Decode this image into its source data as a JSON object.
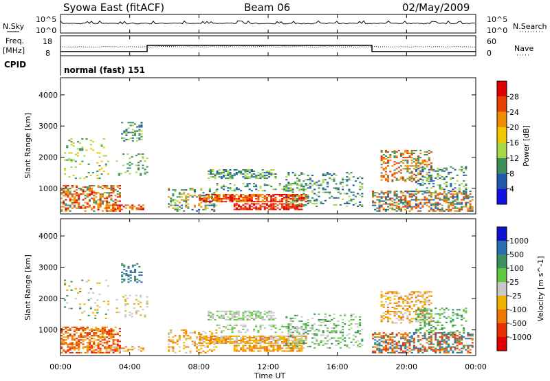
{
  "header": {
    "station": "Syowa East (fitACF)",
    "beam": "Beam 06",
    "date": "02/May/2009"
  },
  "noise_panel": {
    "left_label": "N.Sky",
    "right_label": "N.Search",
    "ticks_left": [
      "10^5",
      "10^0"
    ],
    "ticks_right": [
      "10^5",
      "10^0"
    ]
  },
  "freq_panel": {
    "left_label_top": "Freq.",
    "left_label_bottom": "[MHz]",
    "right_label": "Nave",
    "ticks_left": [
      "18",
      "8"
    ],
    "ticks_right": [
      "60",
      "0"
    ]
  },
  "cpid": {
    "label": "CPID",
    "value": "normal (fast) 151"
  },
  "x_axis": {
    "label": "Time UT",
    "ticks": [
      "00:00",
      "04:00",
      "08:00",
      "12:00",
      "16:00",
      "20:00",
      "00:00"
    ]
  },
  "chart_data": [
    {
      "type": "heatmap",
      "name": "power",
      "ylabel": "Slant Range [km]",
      "ylim": [
        180,
        4550
      ],
      "yticks": [
        "1000",
        "2000",
        "3000",
        "4000"
      ],
      "colorbar_label": "Power [dB]",
      "colorbar_ticks": [
        "4",
        "8",
        "12",
        "16",
        "20",
        "24",
        "28"
      ],
      "colors": [
        "#1010e0",
        "#1f5aaa",
        "#3d8f5a",
        "#a8d84a",
        "#f0c800",
        "#f08c00",
        "#e84000",
        "#e00000"
      ]
    },
    {
      "type": "heatmap",
      "name": "velocity",
      "ylabel": "Slant Range [km]",
      "ylim": [
        180,
        4550
      ],
      "yticks": [
        "1000",
        "2000",
        "3000",
        "4000"
      ],
      "colorbar_label": "Velocity [m s^-1]",
      "colorbar_ticks": [
        "1000",
        "500",
        "100",
        "25",
        "-25",
        "-100",
        "-500",
        "-1000"
      ],
      "colors": [
        "#1010d0",
        "#2a6fb0",
        "#3a9060",
        "#60c840",
        "#c8c8c8",
        "#f0b000",
        "#f07800",
        "#e83000",
        "#e00000"
      ]
    }
  ]
}
